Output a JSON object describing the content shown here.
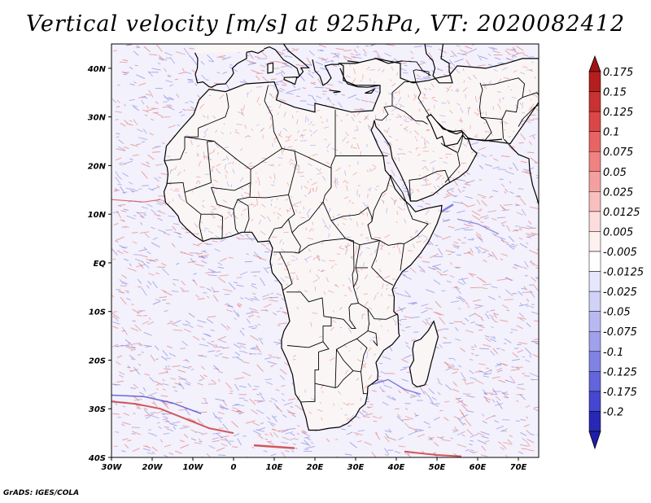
{
  "title": "Vertical velocity [m/s] at 925hPa, VT: 2020082412",
  "credit": "GrADS: IGES/COLA",
  "map": {
    "projection": "lat-lon",
    "lon_range": [
      -30,
      75
    ],
    "lat_range": [
      -40,
      45
    ],
    "lon_ticks": [
      {
        "value": -30,
        "label": "30W"
      },
      {
        "value": -20,
        "label": "20W"
      },
      {
        "value": -10,
        "label": "10W"
      },
      {
        "value": 0,
        "label": "0"
      },
      {
        "value": 10,
        "label": "10E"
      },
      {
        "value": 20,
        "label": "20E"
      },
      {
        "value": 30,
        "label": "30E"
      },
      {
        "value": 40,
        "label": "40E"
      },
      {
        "value": 50,
        "label": "50E"
      },
      {
        "value": 60,
        "label": "60E"
      },
      {
        "value": 70,
        "label": "70E"
      }
    ],
    "lat_ticks": [
      {
        "value": 40,
        "label": "40N"
      },
      {
        "value": 30,
        "label": "30N"
      },
      {
        "value": 20,
        "label": "20N"
      },
      {
        "value": 10,
        "label": "10N"
      },
      {
        "value": 0,
        "label": "EQ"
      },
      {
        "value": -10,
        "label": "10S"
      },
      {
        "value": -20,
        "label": "20S"
      },
      {
        "value": -30,
        "label": "30S"
      },
      {
        "value": -40,
        "label": "40S"
      }
    ]
  },
  "colorbar": {
    "orientation": "vertical",
    "placement": "right",
    "bins": [
      {
        "label": "0.175",
        "color": "#b41e1e"
      },
      {
        "label": "0.15",
        "color": "#c83232"
      },
      {
        "label": "0.125",
        "color": "#dc4646"
      },
      {
        "label": "0.1",
        "color": "#e86464"
      },
      {
        "label": "0.075",
        "color": "#f08282"
      },
      {
        "label": "0.05",
        "color": "#f5a0a0"
      },
      {
        "label": "0.025",
        "color": "#f9bebe"
      },
      {
        "label": "0.0125",
        "color": "#fcdcdc"
      },
      {
        "label": "0.005",
        "color": "#fff0f0"
      },
      {
        "label": "-0.005",
        "color": "#ffffff"
      },
      {
        "label": "-0.0125",
        "color": "#e6e6fc"
      },
      {
        "label": "-0.025",
        "color": "#d2d2f8"
      },
      {
        "label": "-0.05",
        "color": "#b9b9f2"
      },
      {
        "label": "-0.075",
        "color": "#a0a0ec"
      },
      {
        "label": "-0.1",
        "color": "#8282e4"
      },
      {
        "label": "-0.125",
        "color": "#6464dc"
      },
      {
        "label": "-0.175",
        "color": "#4646d0"
      },
      {
        "label": "-0.2",
        "color": "#2828b4"
      }
    ],
    "top_cap_color": "#a01414",
    "bottom_cap_color": "#1e1eaa"
  },
  "colors": {
    "ocean_base": "#f3f1fb",
    "land_base": "#fbf6f6",
    "coast": "#000000",
    "positive": "#e0605f",
    "negative": "#7070e0"
  }
}
